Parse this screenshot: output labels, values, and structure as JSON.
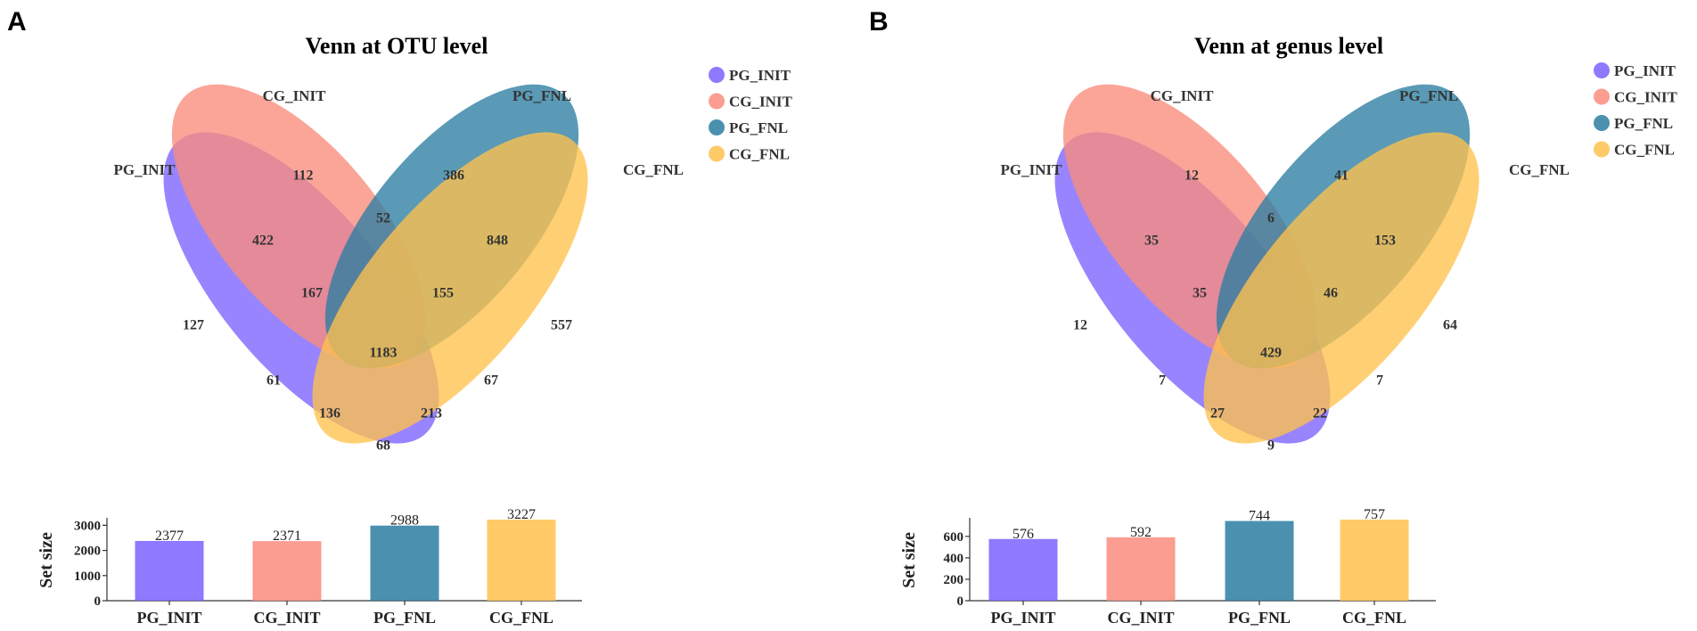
{
  "colors": {
    "PG_INIT": "#7b61ff",
    "CG_INIT": "#fa8c7c",
    "PG_FNL": "#2b7ea1",
    "CG_FNL": "#ffc24d"
  },
  "chart_data": [
    {
      "panel_label": "A",
      "type": "venn",
      "title": "Venn at OTU level",
      "sets": [
        "PG_INIT",
        "CG_INIT",
        "PG_FNL",
        "CG_FNL"
      ],
      "legend": [
        "PG_INIT",
        "CG_INIT",
        "PG_FNL",
        "CG_FNL"
      ],
      "regions": {
        "PG_INIT_only": 127,
        "CG_INIT_only": 112,
        "PG_FNL_only": 386,
        "CG_FNL_only": 557,
        "PG_INIT&CG_INIT": 422,
        "CG_INIT&PG_FNL": 52,
        "PG_FNL&CG_FNL": 848,
        "PG_INIT&CG_INIT&PG_FNL": 167,
        "CG_INIT&PG_FNL&CG_FNL": 155,
        "all_four": 1183,
        "PG_INIT&PG_FNL": 61,
        "CG_INIT&CG_FNL": 67,
        "PG_INIT&PG_FNL&CG_FNL": 136,
        "PG_INIT&CG_INIT&CG_FNL": 213,
        "PG_INIT&CG_FNL": 68
      },
      "set_size": {
        "type": "bar",
        "ylabel": "Set size",
        "categories": [
          "PG_INIT",
          "CG_INIT",
          "PG_FNL",
          "CG_FNL"
        ],
        "values": [
          2377,
          2371,
          2988,
          3227
        ],
        "ylim": [
          0,
          3227
        ],
        "yticks": [
          0,
          1000,
          2000,
          3000
        ]
      }
    },
    {
      "panel_label": "B",
      "type": "venn",
      "title": "Venn at genus level",
      "sets": [
        "PG_INIT",
        "CG_INIT",
        "PG_FNL",
        "CG_FNL"
      ],
      "legend": [
        "PG_INIT",
        "CG_INIT",
        "PG_FNL",
        "CG_FNL"
      ],
      "regions": {
        "PG_INIT_only": 12,
        "CG_INIT_only": 12,
        "PG_FNL_only": 41,
        "CG_FNL_only": 64,
        "PG_INIT&CG_INIT": 35,
        "CG_INIT&PG_FNL": 6,
        "PG_FNL&CG_FNL": 153,
        "PG_INIT&CG_INIT&PG_FNL": 35,
        "CG_INIT&PG_FNL&CG_FNL": 46,
        "all_four": 429,
        "PG_INIT&PG_FNL": 7,
        "CG_INIT&CG_FNL": 7,
        "PG_INIT&PG_FNL&CG_FNL": 27,
        "PG_INIT&CG_INIT&CG_FNL": 22,
        "PG_INIT&CG_FNL": 9
      },
      "set_size": {
        "type": "bar",
        "ylabel": "Set size",
        "categories": [
          "PG_INIT",
          "CG_INIT",
          "PG_FNL",
          "CG_FNL"
        ],
        "values": [
          576,
          592,
          744,
          757
        ],
        "ylim": [
          0,
          757
        ],
        "yticks": [
          0,
          200,
          400,
          600
        ]
      }
    }
  ]
}
